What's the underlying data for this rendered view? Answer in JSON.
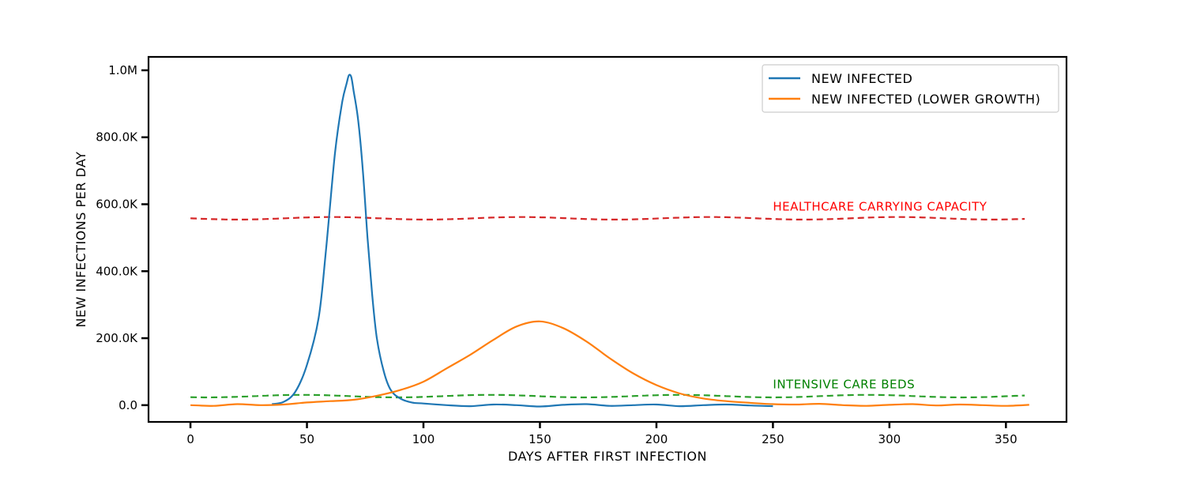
{
  "chart_data": {
    "type": "line",
    "xlabel": "DAYS AFTER FIRST INFECTION",
    "ylabel": "NEW INFECTIONS PER DAY",
    "xlim": [
      -18,
      376
    ],
    "ylim": [
      -50000,
      1040000
    ],
    "xticks": [
      0,
      50,
      100,
      150,
      200,
      250,
      300,
      350
    ],
    "xtick_labels": [
      "0",
      "50",
      "100",
      "150",
      "200",
      "250",
      "300",
      "350"
    ],
    "yticks": [
      0,
      200000,
      400000,
      600000,
      800000,
      1000000
    ],
    "ytick_labels": [
      "0.0",
      "200.0K",
      "400.0K",
      "600.0K",
      "800.0K",
      "1.0M"
    ],
    "grid": false,
    "legend_position": "top-right",
    "series": [
      {
        "name": "NEW INFECTED",
        "color": "#1f77b4",
        "x": [
          35,
          40,
          45,
          50,
          55,
          58,
          62,
          65,
          67,
          68,
          69,
          70,
          72,
          74,
          76,
          78,
          80,
          83,
          86,
          90,
          95,
          100,
          110,
          120,
          130,
          140,
          150,
          160,
          170,
          180,
          190,
          200,
          210,
          220,
          230,
          240,
          250
        ],
        "y": [
          3000,
          10000,
          40000,
          120000,
          260000,
          450000,
          750000,
          900000,
          960000,
          985000,
          980000,
          940000,
          850000,
          700000,
          500000,
          330000,
          200000,
          100000,
          45000,
          20000,
          8000,
          5000,
          0,
          -3000,
          2000,
          0,
          -4000,
          1000,
          3000,
          -2000,
          0,
          2000,
          -3000,
          0,
          2000,
          -1000,
          -3000
        ]
      },
      {
        "name": "NEW INFECTED (LOWER GROWTH)",
        "color": "#ff7f0e",
        "x": [
          0,
          10,
          20,
          30,
          40,
          50,
          60,
          70,
          80,
          90,
          100,
          110,
          120,
          130,
          140,
          150,
          160,
          170,
          180,
          190,
          200,
          210,
          220,
          230,
          240,
          250,
          260,
          270,
          280,
          290,
          300,
          310,
          320,
          330,
          340,
          350,
          360
        ],
        "y": [
          0,
          -2000,
          3000,
          0,
          2000,
          8000,
          12000,
          16000,
          28000,
          45000,
          70000,
          110000,
          150000,
          195000,
          235000,
          250000,
          230000,
          190000,
          140000,
          95000,
          60000,
          35000,
          20000,
          12000,
          7000,
          3000,
          2000,
          4000,
          0,
          -2000,
          1000,
          3000,
          -1000,
          2000,
          0,
          -2000,
          1000
        ]
      }
    ],
    "reference_lines": [
      {
        "label": "HEALTHCARE CARRYING CAPACITY",
        "value": 558000,
        "x_start": 0,
        "x_end": 360,
        "color": "#d62728",
        "text_color": "#ff0000",
        "text_x": 250
      },
      {
        "label": "INTENSIVE CARE BEDS",
        "value": 27000,
        "x_start": 0,
        "x_end": 360,
        "color": "#2ca02c",
        "text_color": "#008000",
        "text_x": 250
      }
    ]
  }
}
